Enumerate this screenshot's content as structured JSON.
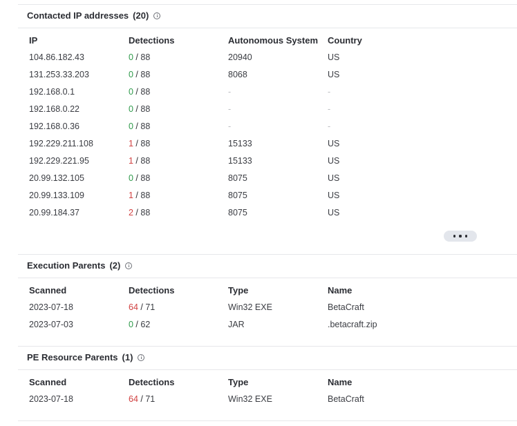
{
  "contacted_ips": {
    "title": "Contacted IP addresses",
    "count": "(20)",
    "columns": [
      "IP",
      "Detections",
      "Autonomous System",
      "Country"
    ],
    "rows": [
      {
        "ip": "104.86.182.43",
        "det_pos": "0",
        "det_total": "88",
        "as": "20940",
        "country": "US"
      },
      {
        "ip": "131.253.33.203",
        "det_pos": "0",
        "det_total": "88",
        "as": "8068",
        "country": "US"
      },
      {
        "ip": "192.168.0.1",
        "det_pos": "0",
        "det_total": "88",
        "as": "-",
        "country": "-"
      },
      {
        "ip": "192.168.0.22",
        "det_pos": "0",
        "det_total": "88",
        "as": "-",
        "country": "-"
      },
      {
        "ip": "192.168.0.36",
        "det_pos": "0",
        "det_total": "88",
        "as": "-",
        "country": "-"
      },
      {
        "ip": "192.229.211.108",
        "det_pos": "1",
        "det_total": "88",
        "as": "15133",
        "country": "US"
      },
      {
        "ip": "192.229.221.95",
        "det_pos": "1",
        "det_total": "88",
        "as": "15133",
        "country": "US"
      },
      {
        "ip": "20.99.132.105",
        "det_pos": "0",
        "det_total": "88",
        "as": "8075",
        "country": "US"
      },
      {
        "ip": "20.99.133.109",
        "det_pos": "1",
        "det_total": "88",
        "as": "8075",
        "country": "US"
      },
      {
        "ip": "20.99.184.37",
        "det_pos": "2",
        "det_total": "88",
        "as": "8075",
        "country": "US"
      }
    ]
  },
  "execution_parents": {
    "title": "Execution Parents",
    "count": "(2)",
    "columns": [
      "Scanned",
      "Detections",
      "Type",
      "Name"
    ],
    "rows": [
      {
        "scanned": "2023-07-18",
        "det_pos": "64",
        "det_total": "71",
        "type": "Win32 EXE",
        "name": "BetaCraft"
      },
      {
        "scanned": "2023-07-03",
        "det_pos": "0",
        "det_total": "62",
        "type": "JAR",
        "name": ".betacraft.zip"
      }
    ]
  },
  "pe_resource_parents": {
    "title": "PE Resource Parents",
    "count": "(1)",
    "columns": [
      "Scanned",
      "Detections",
      "Type",
      "Name"
    ],
    "rows": [
      {
        "scanned": "2023-07-18",
        "det_pos": "64",
        "det_total": "71",
        "type": "Win32 EXE",
        "name": "BetaCraft"
      }
    ]
  },
  "colors": {
    "clean": "#2f9a4b",
    "detected": "#d14141",
    "divider": "#e6e7ea"
  },
  "icons": {
    "section_info": "info-icon",
    "more": "more-dots-icon"
  }
}
